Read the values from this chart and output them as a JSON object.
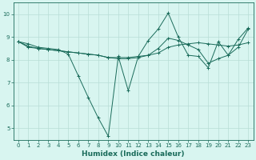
{
  "title": "",
  "xlabel": "Humidex (Indice chaleur)",
  "ylabel": "",
  "xlim": [
    -0.5,
    23.5
  ],
  "ylim": [
    4.5,
    10.5
  ],
  "yticks": [
    5,
    6,
    7,
    8,
    9,
    10
  ],
  "xticks": [
    0,
    1,
    2,
    3,
    4,
    5,
    6,
    7,
    8,
    9,
    10,
    11,
    12,
    13,
    14,
    15,
    16,
    17,
    18,
    19,
    20,
    21,
    22,
    23
  ],
  "bg_color": "#d8f5f0",
  "line_color": "#1a6b5a",
  "grid_color": "#b8ddd6",
  "series": [
    [
      8.8,
      8.7,
      8.55,
      8.5,
      8.45,
      8.25,
      7.3,
      6.35,
      5.45,
      4.65,
      8.15,
      6.65,
      8.15,
      8.85,
      9.35,
      10.05,
      9.0,
      8.2,
      8.15,
      7.65,
      8.8,
      8.2,
      8.9,
      9.4
    ],
    [
      8.8,
      8.55,
      8.5,
      8.45,
      8.4,
      8.35,
      8.3,
      8.25,
      8.2,
      8.1,
      8.1,
      8.1,
      8.15,
      8.2,
      8.3,
      8.55,
      8.65,
      8.7,
      8.75,
      8.7,
      8.65,
      8.6,
      8.65,
      8.75
    ],
    [
      8.8,
      8.6,
      8.5,
      8.45,
      8.4,
      8.35,
      8.3,
      8.25,
      8.2,
      8.1,
      8.05,
      8.05,
      8.1,
      8.2,
      8.5,
      8.95,
      8.85,
      8.65,
      8.45,
      7.85,
      8.05,
      8.2,
      8.55,
      9.35
    ]
  ],
  "tick_fontsize": 5.0,
  "xlabel_fontsize": 6.5,
  "linewidth": 0.7,
  "markersize": 2.5
}
